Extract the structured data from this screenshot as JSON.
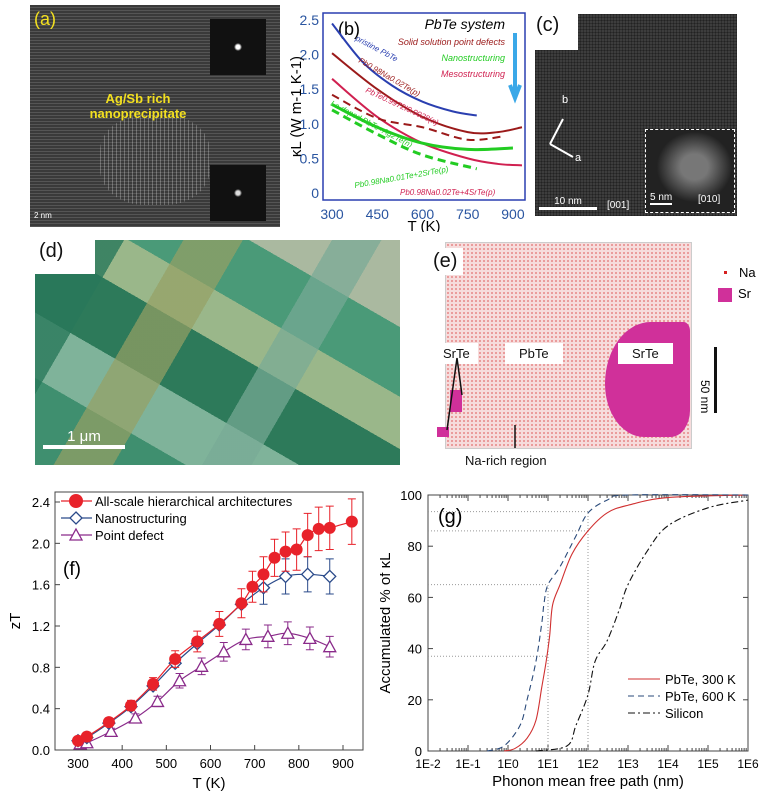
{
  "panels": {
    "a": {
      "label": "(a)",
      "annotation": "Ag/Sb rich nanoprecipitate",
      "scale": "2 nm"
    },
    "c": {
      "label": "(c)",
      "axis_b": "b",
      "axis_a": "a",
      "scale_main": "10 nm",
      "zone_main": "[001]",
      "scale_inset": "5 nm",
      "zone_inset": "[010]"
    },
    "d": {
      "label": "(d)",
      "scale": "1 μm"
    },
    "e": {
      "label": "(e)",
      "legend": [
        {
          "label": "Na",
          "color": "#d62020"
        },
        {
          "label": "Sr",
          "color": "#d0309a"
        }
      ],
      "phase_left": "SrTe",
      "phase_mid": "PbTe",
      "phase_right": "SrTe",
      "region": "Na-rich region",
      "scale": "50 nm"
    }
  },
  "chart_data": [
    {
      "id": "b",
      "type": "line",
      "panel_label": "(b)",
      "title": "PbTe system",
      "xlabel": "T (K)",
      "ylabel": "κL (W m-1 K-1)",
      "xlim": [
        270,
        940
      ],
      "ylim": [
        0,
        2.5
      ],
      "xticks": [
        300,
        450,
        600,
        750,
        900
      ],
      "yticks": [
        0,
        0.5,
        1.0,
        1.5,
        2.0,
        2.5
      ],
      "legend": [
        {
          "label": "Solid solution point defects",
          "color": "#9b1a1a"
        },
        {
          "label": "Nanostructuring",
          "color": "#22cc22"
        },
        {
          "label": "Mesostructuring",
          "color": "#d02050"
        }
      ],
      "series": [
        {
          "name": "pristine PbTe",
          "color": "#2a3fb0",
          "dash": false,
          "x": [
            300,
            400,
            500,
            600,
            700,
            780
          ],
          "y": [
            2.45,
            1.9,
            1.55,
            1.32,
            1.18,
            1.12
          ]
        },
        {
          "name": "Pb0.98Na0.02Te(p)",
          "color": "#9b1a1a",
          "dash": false,
          "x": [
            300,
            450,
            600,
            750,
            850,
            930
          ],
          "y": [
            2.02,
            1.5,
            1.1,
            0.88,
            0.88,
            0.95
          ]
        },
        {
          "name": "PbTe0.9972I0.0028(n)",
          "color": "#d02050",
          "dash": false,
          "x": [
            300,
            450,
            600,
            750,
            850,
            930
          ],
          "y": [
            1.65,
            1.1,
            0.72,
            0.5,
            0.42,
            0.4
          ]
        },
        {
          "name": "",
          "color": "#9b1a1a",
          "dash": true,
          "x": [
            300,
            450,
            600,
            750,
            870
          ],
          "y": [
            1.42,
            1.08,
            0.95,
            0.77,
            0.82
          ]
        },
        {
          "name": "Pb0.98Na0.01Te+2SrTe(p)",
          "color": "#22cc22",
          "dash": false,
          "x": [
            300,
            450,
            600,
            750,
            900
          ],
          "y": [
            1.28,
            0.95,
            0.72,
            0.63,
            0.65
          ]
        },
        {
          "name": "La doped PbTe+Ag2Te(n)",
          "color": "#22cc22",
          "dash": true,
          "x": [
            300,
            450,
            600,
            780
          ],
          "y": [
            1.2,
            0.85,
            0.55,
            0.35
          ]
        }
      ],
      "annotation": "Pb0.98Na0.02Te+4SrTe(p)"
    },
    {
      "id": "f",
      "type": "line",
      "panel_label": "(f)",
      "xlabel": "T (K)",
      "ylabel": "zT",
      "xlim": [
        250,
        960
      ],
      "ylim": [
        0,
        2.48
      ],
      "xticks": [
        300,
        400,
        500,
        600,
        700,
        800,
        900
      ],
      "yticks": [
        0.0,
        0.4,
        0.8,
        1.2,
        1.6,
        2.0,
        2.4
      ],
      "legend_position": "top-left",
      "series": [
        {
          "name": "All-scale hierarchical architectures",
          "color": "#e8222a",
          "marker": "circle",
          "x": [
            300,
            320,
            370,
            420,
            470,
            520,
            570,
            620,
            670,
            695,
            720,
            745,
            770,
            795,
            820,
            845,
            870,
            920
          ],
          "y": [
            0.09,
            0.13,
            0.27,
            0.43,
            0.64,
            0.88,
            1.05,
            1.22,
            1.42,
            1.58,
            1.7,
            1.86,
            1.92,
            1.94,
            2.08,
            2.14,
            2.15,
            2.21
          ],
          "err": [
            0.03,
            0.03,
            0.04,
            0.05,
            0.06,
            0.08,
            0.1,
            0.12,
            0.14,
            0.15,
            0.17,
            0.18,
            0.19,
            0.2,
            0.21,
            0.21,
            0.21,
            0.22
          ]
        },
        {
          "name": "Nanostructuring",
          "color": "#2a4a8a",
          "marker": "diamond",
          "x": [
            300,
            320,
            370,
            420,
            470,
            520,
            570,
            620,
            670,
            720,
            770,
            820,
            870
          ],
          "y": [
            0.09,
            0.12,
            0.26,
            0.42,
            0.62,
            0.84,
            1.03,
            1.21,
            1.41,
            1.57,
            1.68,
            1.7,
            1.68
          ],
          "err": [
            0,
            0,
            0,
            0,
            0,
            0,
            0,
            0,
            0,
            0.16,
            0.17,
            0.17,
            0.17
          ]
        },
        {
          "name": "Point defect",
          "color": "#8a2a8a",
          "marker": "triangle",
          "x": [
            305,
            320,
            375,
            430,
            480,
            530,
            580,
            630,
            680,
            730,
            775,
            825,
            870
          ],
          "y": [
            0.06,
            0.07,
            0.18,
            0.31,
            0.47,
            0.67,
            0.81,
            0.95,
            1.07,
            1.1,
            1.13,
            1.08,
            1.0
          ],
          "err": [
            0.02,
            0.02,
            0.03,
            0.04,
            0.05,
            0.07,
            0.08,
            0.09,
            0.1,
            0.11,
            0.11,
            0.11,
            0.1
          ]
        }
      ]
    },
    {
      "id": "g",
      "type": "line",
      "panel_label": "(g)",
      "xlabel": "Phonon mean free path (nm)",
      "ylabel": "Accumulated % of κL",
      "xscale": "log",
      "xlim": [
        0.01,
        1000000
      ],
      "ylim": [
        0,
        100
      ],
      "xticks": [
        "1E-2",
        "1E-1",
        "1E0",
        "1E1",
        "1E2",
        "1E3",
        "1E4",
        "1E5",
        "1E6"
      ],
      "yticks": [
        0,
        20,
        40,
        60,
        80,
        100
      ],
      "legend_position": "bottom-right",
      "guides": {
        "h": [
          37,
          65,
          86,
          93.5
        ],
        "v": [
          10,
          100
        ]
      },
      "series": [
        {
          "name": "PbTe, 300 K",
          "color": "#d03030",
          "dash": "",
          "x": [
            0.8,
            1.5,
            3,
            5,
            7,
            9,
            11,
            13,
            20,
            40,
            100,
            300,
            1000,
            10000,
            1000000
          ],
          "y": [
            0,
            1,
            5,
            12,
            25,
            35,
            45,
            57,
            65,
            77,
            86,
            93,
            96,
            99,
            100
          ]
        },
        {
          "name": "PbTe, 600 K",
          "color": "#2a4a7a",
          "dash": "6 4",
          "x": [
            0.3,
            0.8,
            2,
            3,
            5,
            7,
            8,
            10,
            20,
            50,
            100,
            300,
            1000,
            1000000
          ],
          "y": [
            0,
            2,
            10,
            20,
            35,
            50,
            58,
            65,
            72,
            84,
            93,
            98,
            100,
            100
          ]
        },
        {
          "name": "Silicon",
          "color": "#111111",
          "dash": "7 3 2 3",
          "x": [
            5,
            30,
            50,
            100,
            150,
            300,
            600,
            1000,
            3000,
            10000,
            100000,
            1000000
          ],
          "y": [
            0,
            2,
            10,
            22,
            35,
            43,
            55,
            65,
            78,
            88,
            95,
            98
          ]
        }
      ]
    }
  ]
}
